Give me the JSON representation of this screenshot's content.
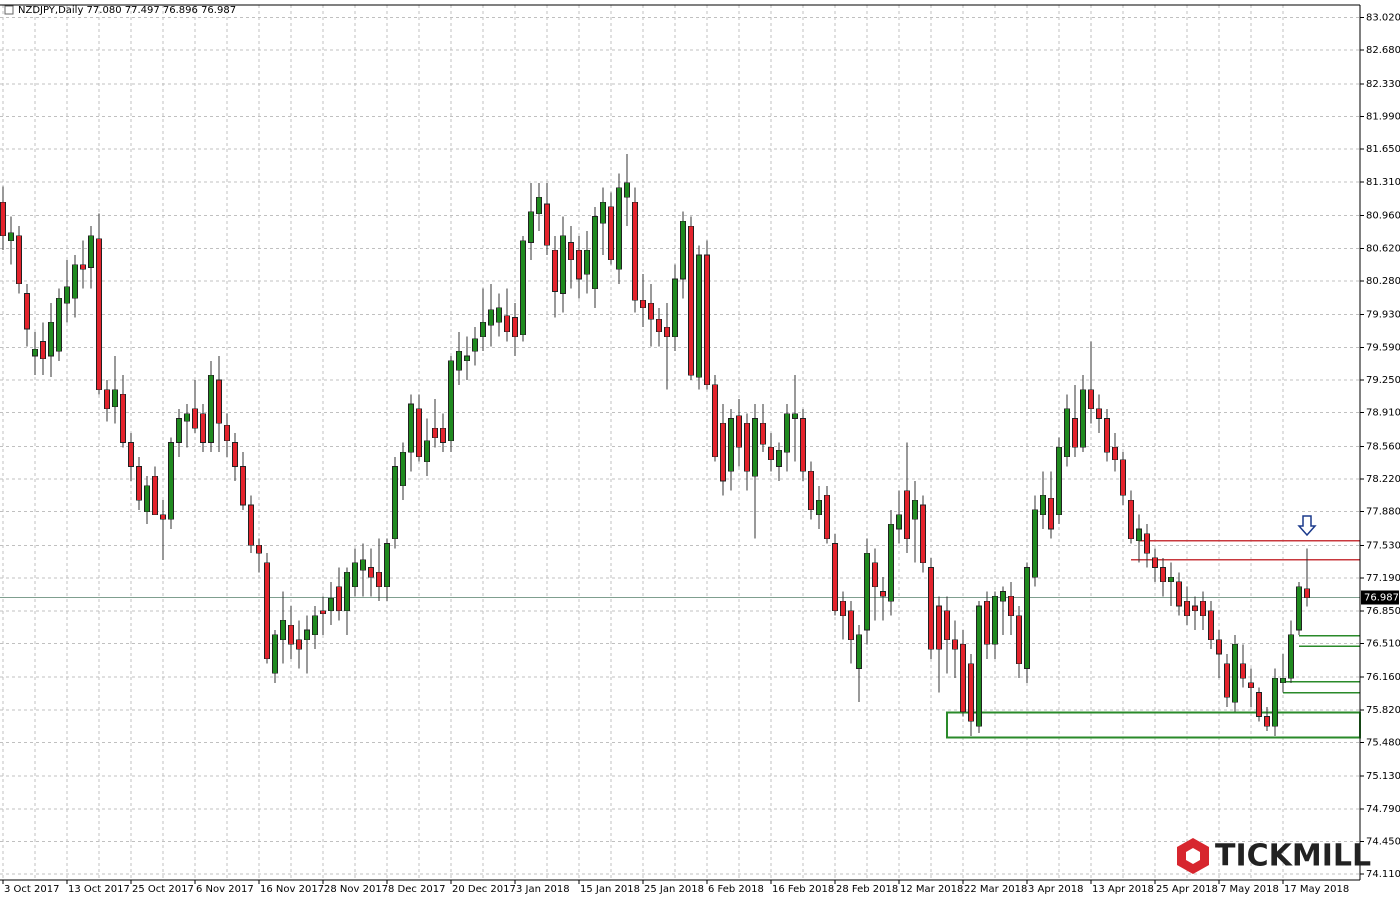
{
  "chart_data": {
    "type": "candlestick",
    "title": "NZDJPY,Daily  77.080 77.497 76.896 76.987",
    "categories": [
      "3 Oct 2017",
      null,
      null,
      null,
      null,
      null,
      null,
      null,
      "13 Oct 2017",
      null,
      null,
      null,
      null,
      null,
      null,
      null,
      "25 Oct 2017",
      null,
      null,
      null,
      null,
      null,
      null,
      null,
      "6 Nov 2017",
      null,
      null,
      null,
      null,
      null,
      null,
      null,
      "16 Nov 2017",
      null,
      null,
      null,
      null,
      null,
      null,
      null,
      "28 Nov 2017",
      null,
      null,
      null,
      null,
      null,
      null,
      null,
      "8 Dec 2017",
      null,
      null,
      null,
      null,
      null,
      null,
      null,
      "20 Dec 2017",
      null,
      null,
      null,
      null,
      null,
      null,
      null,
      "3 Jan 2018",
      null,
      null,
      null,
      null,
      null,
      null,
      null,
      "15 Jan 2018",
      null,
      null,
      null,
      null,
      null,
      null,
      null,
      "25 Jan 2018",
      null,
      null,
      null,
      null,
      null,
      null,
      null,
      "6 Feb 2018",
      null,
      null,
      null,
      null,
      null,
      null,
      null,
      "16 Feb 2018",
      null,
      null,
      null,
      null,
      null,
      null,
      null,
      "28 Feb 2018",
      null,
      null,
      null,
      null,
      null,
      null,
      null,
      "12 Mar 2018",
      null,
      null,
      null,
      null,
      null,
      null,
      null,
      "22 Mar 2018",
      null,
      null,
      null,
      null,
      null,
      null,
      null,
      "3 Apr 2018",
      null,
      null,
      null,
      null,
      null,
      null,
      null,
      "13 Apr 2018",
      null,
      null,
      null,
      null,
      null,
      null,
      null,
      "25 Apr 2018",
      null,
      null,
      null,
      null,
      null,
      null,
      null,
      "7 May 2018",
      null,
      null,
      null,
      null,
      null,
      null,
      null,
      "17 May 2018",
      null,
      null,
      null
    ],
    "open": [
      81.1,
      80.7,
      80.75,
      80.15,
      79.5,
      79.65,
      79.5,
      79.55,
      80.05,
      80.1,
      80.45,
      80.42,
      80.72,
      79.15,
      78.97,
      79.1,
      78.6,
      78.35,
      77.88,
      78.25,
      77.85,
      77.8,
      78.6,
      78.82,
      78.95,
      78.9,
      78.6,
      79.25,
      78.78,
      78.6,
      78.35,
      77.95,
      77.53,
      77.35,
      76.2,
      76.55,
      76.7,
      76.55,
      76.55,
      76.6,
      76.85,
      76.85,
      77.1,
      76.85,
      77.1,
      77.27,
      77.3,
      77.25,
      77.1,
      77.6,
      78.15,
      78.5,
      78.95,
      78.4,
      78.75,
      78.75,
      78.62,
      79.35,
      79.45,
      79.55,
      79.7,
      79.82,
      79.85,
      79.92,
      79.9,
      79.72,
      80.68,
      80.98,
      81.08,
      80.6,
      80.15,
      80.68,
      80.6,
      80.35,
      80.2,
      80.88,
      81.05,
      80.4,
      81.15,
      81.1,
      80.08,
      80.05,
      79.88,
      79.8,
      79.7,
      80.3,
      80.85,
      79.28,
      80.55,
      79.2,
      78.8,
      78.3,
      78.88,
      78.8,
      78.25,
      78.8,
      78.55,
      78.35,
      78.5,
      78.85,
      78.85,
      78.3,
      77.85,
      78.05,
      77.55,
      76.95,
      76.85,
      76.25,
      76.65,
      77.35,
      77.05,
      76.95,
      77.7,
      78.1,
      77.8,
      77.95,
      77.3,
      76.9,
      76.85,
      76.55,
      76.5,
      76.3,
      75.65,
      76.95,
      76.5,
      76.95,
      77.0,
      76.8,
      76.25,
      77.2,
      77.85,
      78.02,
      77.85,
      78.45,
      78.85,
      78.55,
      79.15,
      78.95,
      78.85,
      78.55,
      78.42,
      78.0,
      77.58,
      77.65,
      77.4,
      77.3,
      77.15,
      77.15,
      76.95,
      76.9,
      76.95,
      76.85,
      76.55,
      76.3,
      75.9,
      76.3,
      76.1,
      76.0,
      75.75,
      75.65,
      76.1,
      76.15,
      76.65,
      77.08
    ],
    "high": [
      81.26,
      80.95,
      80.85,
      80.25,
      79.75,
      79.85,
      80.05,
      80.2,
      80.5,
      80.55,
      80.7,
      80.85,
      80.98,
      79.25,
      79.5,
      79.3,
      78.7,
      78.45,
      78.25,
      78.35,
      78.0,
      78.65,
      78.95,
      79.0,
      79.25,
      79.0,
      79.45,
      79.5,
      78.9,
      78.7,
      78.5,
      78.05,
      77.6,
      77.45,
      76.65,
      77.05,
      76.9,
      76.75,
      76.8,
      76.9,
      77.0,
      77.15,
      77.3,
      77.3,
      77.5,
      77.55,
      77.5,
      77.6,
      77.6,
      78.45,
      78.6,
      79.1,
      79.1,
      78.85,
      79.05,
      78.9,
      79.5,
      79.75,
      79.7,
      79.8,
      80.2,
      80.25,
      80.15,
      80.2,
      80.05,
      80.75,
      81.3,
      81.3,
      81.3,
      80.75,
      80.95,
      80.85,
      80.75,
      80.8,
      81.05,
      81.25,
      81.2,
      81.4,
      81.6,
      81.25,
      80.35,
      80.25,
      80.0,
      80.05,
      80.45,
      81.0,
      80.95,
      80.65,
      80.7,
      79.3,
      79.0,
      78.95,
      79.05,
      78.9,
      79.0,
      79.0,
      78.7,
      78.6,
      79.0,
      79.3,
      78.95,
      78.4,
      78.15,
      78.15,
      77.65,
      77.05,
      76.95,
      76.7,
      77.6,
      77.5,
      77.2,
      77.9,
      78.1,
      78.6,
      78.2,
      78.05,
      77.4,
      77.0,
      77.0,
      76.75,
      76.65,
      76.4,
      76.95,
      77.05,
      77.05,
      77.1,
      77.15,
      76.9,
      77.35,
      78.05,
      78.3,
      78.3,
      78.65,
      79.1,
      79.2,
      79.3,
      79.65,
      79.1,
      78.95,
      78.7,
      78.5,
      78.1,
      77.85,
      77.75,
      77.5,
      77.4,
      77.35,
      77.25,
      77.1,
      77.0,
      77.05,
      76.95,
      76.65,
      76.4,
      76.6,
      76.5,
      76.25,
      76.05,
      75.85,
      76.25,
      76.4,
      76.75,
      77.15,
      77.497
    ],
    "low": [
      80.6,
      80.45,
      80.15,
      79.6,
      79.3,
      79.3,
      79.28,
      79.45,
      79.85,
      79.9,
      80.2,
      80.2,
      79.1,
      78.82,
      78.8,
      78.55,
      78.2,
      77.9,
      77.75,
      77.85,
      77.38,
      77.7,
      78.45,
      78.55,
      78.7,
      78.5,
      78.5,
      78.5,
      78.45,
      78.2,
      77.9,
      77.45,
      77.25,
      76.3,
      76.1,
      76.3,
      76.35,
      76.25,
      76.2,
      76.45,
      76.6,
      76.7,
      76.75,
      76.6,
      77.0,
      77.0,
      77.0,
      76.95,
      76.95,
      77.5,
      78.0,
      78.3,
      78.4,
      78.25,
      78.55,
      78.5,
      78.5,
      79.2,
      79.25,
      79.4,
      79.55,
      79.6,
      79.7,
      79.65,
      79.5,
      79.65,
      80.5,
      80.8,
      80.55,
      79.9,
      79.95,
      80.2,
      80.1,
      80.15,
      80.0,
      80.55,
      80.45,
      80.25,
      80.85,
      79.95,
      79.8,
      79.6,
      79.6,
      79.15,
      79.55,
      80.1,
      79.25,
      79.15,
      79.15,
      78.4,
      78.05,
      78.1,
      78.35,
      78.1,
      77.6,
      78.5,
      78.3,
      78.2,
      78.3,
      78.4,
      78.2,
      77.8,
      77.7,
      77.55,
      76.8,
      76.55,
      76.3,
      75.9,
      76.5,
      76.75,
      76.75,
      76.8,
      77.55,
      77.45,
      77.35,
      77.25,
      76.35,
      76.0,
      76.2,
      76.15,
      75.75,
      75.55,
      75.58,
      76.35,
      76.35,
      76.6,
      76.6,
      76.15,
      76.1,
      77.1,
      77.7,
      77.6,
      77.75,
      78.35,
      78.45,
      78.5,
      78.8,
      78.7,
      78.4,
      78.3,
      77.95,
      77.55,
      77.35,
      77.3,
      77.15,
      77.0,
      76.9,
      76.8,
      76.7,
      76.65,
      76.65,
      76.45,
      76.15,
      75.85,
      75.8,
      76.05,
      75.85,
      75.7,
      75.6,
      75.55,
      76.0,
      76.1,
      76.6,
      76.896
    ],
    "close": [
      80.75,
      80.78,
      80.25,
      79.78,
      79.57,
      79.47,
      79.85,
      80.1,
      80.22,
      80.45,
      80.4,
      80.75,
      79.15,
      78.95,
      79.15,
      78.6,
      78.35,
      78.0,
      78.15,
      77.85,
      77.8,
      78.6,
      78.85,
      78.9,
      78.75,
      78.6,
      79.3,
      78.8,
      78.62,
      78.35,
      77.95,
      77.53,
      77.45,
      76.35,
      76.6,
      76.75,
      76.5,
      76.45,
      76.65,
      76.8,
      76.82,
      76.98,
      76.85,
      77.25,
      77.35,
      77.38,
      77.2,
      77.1,
      77.55,
      78.35,
      78.5,
      79.0,
      78.45,
      78.62,
      78.65,
      78.6,
      79.45,
      79.55,
      79.5,
      79.68,
      79.85,
      79.98,
      80.0,
      79.75,
      79.7,
      80.7,
      81.0,
      81.15,
      80.65,
      80.17,
      80.75,
      80.5,
      80.3,
      80.6,
      80.95,
      81.1,
      80.5,
      81.25,
      81.3,
      80.08,
      80.0,
      79.88,
      79.75,
      79.7,
      80.3,
      80.9,
      79.3,
      80.55,
      79.2,
      78.45,
      78.2,
      78.85,
      78.55,
      78.3,
      78.85,
      78.58,
      78.42,
      78.52,
      78.9,
      78.9,
      78.3,
      77.9,
      78.0,
      77.6,
      76.85,
      76.8,
      76.55,
      76.6,
      77.45,
      77.1,
      77.0,
      77.75,
      77.85,
      77.6,
      78.0,
      77.35,
      76.45,
      76.45,
      76.55,
      76.45,
      75.8,
      75.7,
      76.9,
      76.5,
      77.0,
      77.05,
      76.8,
      76.3,
      77.3,
      77.9,
      78.05,
      77.7,
      78.55,
      78.95,
      78.55,
      79.15,
      78.95,
      78.85,
      78.5,
      78.42,
      78.05,
      77.6,
      77.7,
      77.45,
      77.3,
      77.15,
      77.2,
      76.9,
      76.8,
      76.85,
      76.8,
      76.55,
      76.4,
      75.95,
      76.5,
      76.15,
      76.05,
      75.75,
      75.65,
      76.15,
      76.15,
      76.6,
      77.1,
      76.987
    ],
    "up_color": "#1f8a1f",
    "down_color": "#e3232c",
    "ylim": [
      74.05,
      83.15
    ],
    "yticks": [
      {
        "value": 83.02,
        "label": "83.020"
      },
      {
        "value": 82.68,
        "label": "82.680"
      },
      {
        "value": 82.33,
        "label": "82.330"
      },
      {
        "value": 81.99,
        "label": "81.990"
      },
      {
        "value": 81.65,
        "label": "81.650"
      },
      {
        "value": 81.31,
        "label": "81.310"
      },
      {
        "value": 80.96,
        "label": "80.960"
      },
      {
        "value": 80.62,
        "label": "80.620"
      },
      {
        "value": 80.28,
        "label": "80.280"
      },
      {
        "value": 79.93,
        "label": "79.930"
      },
      {
        "value": 79.59,
        "label": "79.590"
      },
      {
        "value": 79.25,
        "label": "79.250"
      },
      {
        "value": 78.91,
        "label": "78.910"
      },
      {
        "value": 78.56,
        "label": "78.560"
      },
      {
        "value": 78.22,
        "label": "78.220"
      },
      {
        "value": 77.88,
        "label": "77.880"
      },
      {
        "value": 77.53,
        "label": "77.530"
      },
      {
        "value": 77.19,
        "label": "77.190"
      },
      {
        "value": 76.85,
        "label": "76.850"
      },
      {
        "value": 76.51,
        "label": "76.510"
      },
      {
        "value": 76.16,
        "label": "76.160"
      },
      {
        "value": 75.82,
        "label": "75.820"
      },
      {
        "value": 75.48,
        "label": "75.480"
      },
      {
        "value": 75.13,
        "label": "75.130"
      },
      {
        "value": 74.79,
        "label": "74.790"
      },
      {
        "value": 74.45,
        "label": "74.450"
      },
      {
        "value": 74.11,
        "label": "74.110"
      }
    ],
    "grid": true,
    "last_price": 76.987,
    "hlines": [
      {
        "value": 77.58,
        "color": "#c8383e",
        "start": 142
      },
      {
        "value": 77.38,
        "color": "#c8383e",
        "start": 141
      },
      {
        "value": 76.59,
        "color": "#2a8a2a",
        "start": 162
      },
      {
        "value": 76.48,
        "color": "#2a8a2a",
        "start": 162
      },
      {
        "value": 76.11,
        "color": "#2a8a2a",
        "start": 160
      },
      {
        "value": 76.0,
        "color": "#2a8a2a",
        "start": 160
      }
    ],
    "zone": {
      "top": 75.79,
      "bottom": 75.53,
      "start": 118,
      "color": "#2a8a2a"
    }
  },
  "logo": "TICKMILL"
}
